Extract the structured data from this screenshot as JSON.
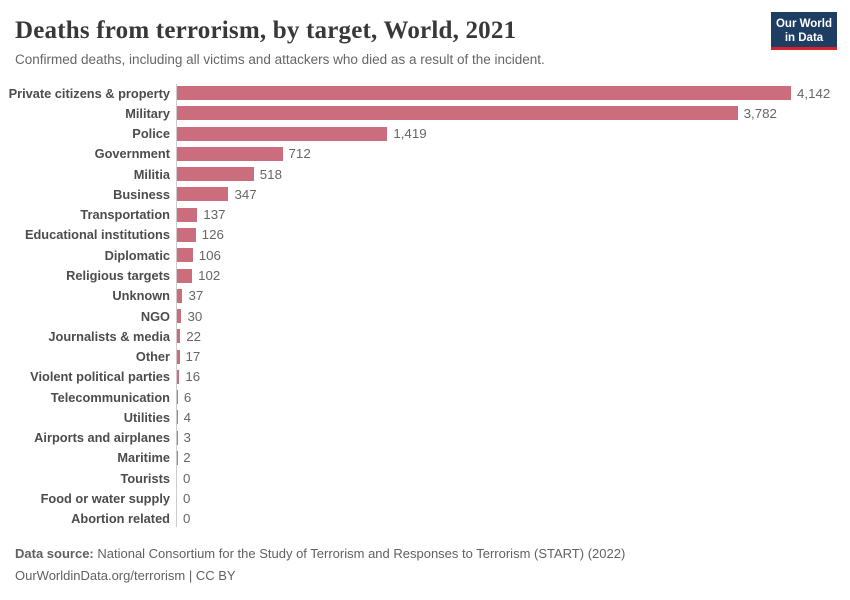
{
  "header": {
    "title": "Deaths from terrorism, by target, World, 2021",
    "subtitle": "Confirmed deaths, including all victims and attackers who died as a result of the incident.",
    "logo": {
      "line1": "Our World",
      "line2": "in Data"
    }
  },
  "chart_data": {
    "type": "bar",
    "orientation": "horizontal",
    "title": "Deaths from terrorism, by target, World, 2021",
    "categories": [
      "Private citizens & property",
      "Military",
      "Police",
      "Government",
      "Militia",
      "Business",
      "Transportation",
      "Educational institutions",
      "Diplomatic",
      "Religious targets",
      "Unknown",
      "NGO",
      "Journalists & media",
      "Other",
      "Violent political parties",
      "Telecommunication",
      "Utilities",
      "Airports and airplanes",
      "Maritime",
      "Tourists",
      "Food or water supply",
      "Abortion related"
    ],
    "values": [
      4142,
      3782,
      1419,
      712,
      518,
      347,
      137,
      126,
      106,
      102,
      37,
      30,
      22,
      17,
      16,
      6,
      4,
      3,
      2,
      0,
      0,
      0
    ],
    "value_labels": [
      "4,142",
      "3,782",
      "1,419",
      "712",
      "518",
      "347",
      "137",
      "126",
      "106",
      "102",
      "37",
      "30",
      "22",
      "17",
      "16",
      "6",
      "4",
      "3",
      "2",
      "0",
      "0",
      "0"
    ],
    "xlim": [
      0,
      4142
    ],
    "grid": false,
    "legend": "none",
    "bar_color": "#cb6d7c"
  },
  "colors": {
    "bar": "#cb6d7c",
    "axis_line": "#cccccc",
    "logo_bg": "#1d3d63",
    "logo_accent": "#d8232a"
  },
  "footer": {
    "datasource_label": "Data source:",
    "datasource_text": " National Consortium for the Study of Terrorism and Responses to Terrorism (START) (2022)",
    "link_line": "OurWorldinData.org/terrorism | CC BY"
  }
}
